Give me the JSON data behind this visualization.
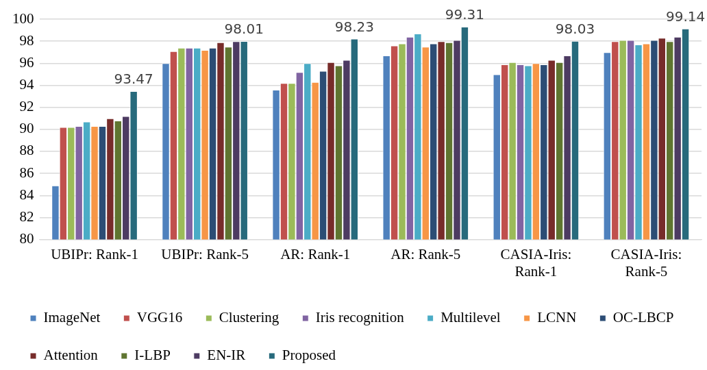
{
  "chart_data": {
    "type": "bar",
    "categories": [
      "UBIPr: Rank-1",
      "UBIPr: Rank-5",
      "AR: Rank-1",
      "AR: Rank-5",
      "CASIA-Iris: Rank-1",
      "CASIA-Iris: Rank-5"
    ],
    "series": [
      {
        "name": "ImageNet",
        "color": "#4f81bd",
        "values": [
          84.9,
          96.0,
          93.6,
          96.7,
          95.0,
          97.0
        ]
      },
      {
        "name": "VGG16",
        "color": "#c0504d",
        "values": [
          90.2,
          97.1,
          94.2,
          97.6,
          95.9,
          98.0
        ]
      },
      {
        "name": "Clustering",
        "color": "#9bbb59",
        "values": [
          90.2,
          97.4,
          94.2,
          97.8,
          96.1,
          98.1
        ]
      },
      {
        "name": "Iris recognition",
        "color": "#8064a2",
        "values": [
          90.3,
          97.4,
          95.2,
          98.4,
          95.9,
          98.1
        ]
      },
      {
        "name": "Multilevel",
        "color": "#4bacc6",
        "values": [
          90.7,
          97.4,
          96.0,
          98.7,
          95.8,
          97.7
        ]
      },
      {
        "name": "LCNN",
        "color": "#f79646",
        "values": [
          90.3,
          97.2,
          94.3,
          97.5,
          96.0,
          97.8
        ]
      },
      {
        "name": "OC-LBCP",
        "color": "#2c4d75",
        "values": [
          90.3,
          97.4,
          95.3,
          97.8,
          95.9,
          98.1
        ]
      },
      {
        "name": "Attention",
        "color": "#772c2a",
        "values": [
          91.0,
          97.9,
          96.1,
          98.0,
          96.3,
          98.3
        ]
      },
      {
        "name": "I-LBP",
        "color": "#5f7530",
        "values": [
          90.8,
          97.5,
          95.8,
          97.9,
          96.1,
          98.0
        ]
      },
      {
        "name": "EN-IR",
        "color": "#4d3b62",
        "values": [
          91.2,
          98.0,
          96.3,
          98.1,
          96.7,
          98.4
        ]
      },
      {
        "name": "Proposed",
        "color": "#276a7c",
        "values": [
          93.47,
          98.01,
          98.23,
          99.31,
          98.03,
          99.14
        ],
        "value_labels": [
          "93.47",
          "98.01",
          "98.23",
          "99.31",
          "98.03",
          "99.14"
        ]
      }
    ],
    "ylim": [
      80,
      100
    ],
    "yticks": [
      80,
      82,
      84,
      86,
      88,
      90,
      92,
      94,
      96,
      98,
      100
    ],
    "grid": "y",
    "legend": "bottom"
  }
}
